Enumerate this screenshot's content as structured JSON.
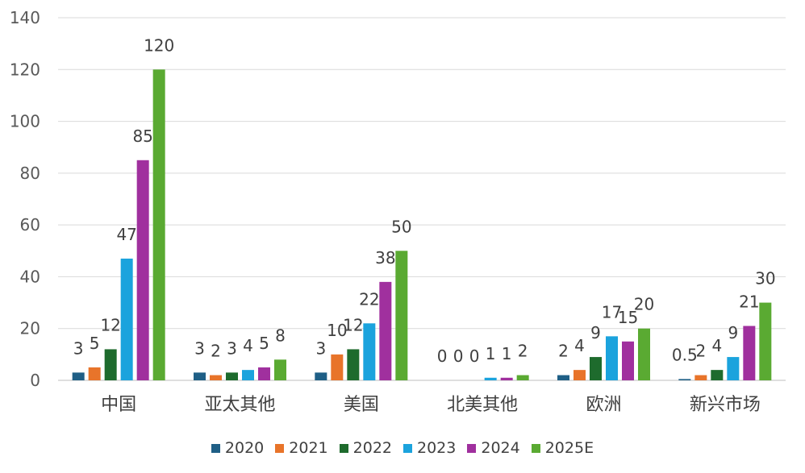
{
  "chart_data": {
    "type": "bar",
    "categories": [
      "中国",
      "亚太其他",
      "美国",
      "北美其他",
      "欧洲",
      "新兴市场"
    ],
    "series": [
      {
        "name": "2020",
        "color": "#1f5f86",
        "values": [
          3,
          3,
          3,
          0,
          2,
          0.5
        ]
      },
      {
        "name": "2021",
        "color": "#e8742a",
        "values": [
          5,
          2,
          10,
          0,
          4,
          2
        ]
      },
      {
        "name": "2022",
        "color": "#1e6b2d",
        "values": [
          12,
          3,
          12,
          0,
          9,
          4
        ]
      },
      {
        "name": "2023",
        "color": "#1ba3dd",
        "values": [
          47,
          4,
          22,
          1,
          17,
          9
        ]
      },
      {
        "name": "2024",
        "color": "#a0309e",
        "values": [
          85,
          5,
          38,
          1,
          15,
          21
        ]
      },
      {
        "name": "2025E",
        "color": "#5aaa32",
        "values": [
          120,
          8,
          50,
          2,
          20,
          30
        ]
      }
    ],
    "ylim": [
      0,
      140
    ],
    "yticks": [
      0,
      20,
      40,
      60,
      80,
      100,
      120,
      140
    ],
    "grid": true,
    "legend_position": "bottom",
    "title": "",
    "xlabel": "",
    "ylabel": ""
  }
}
